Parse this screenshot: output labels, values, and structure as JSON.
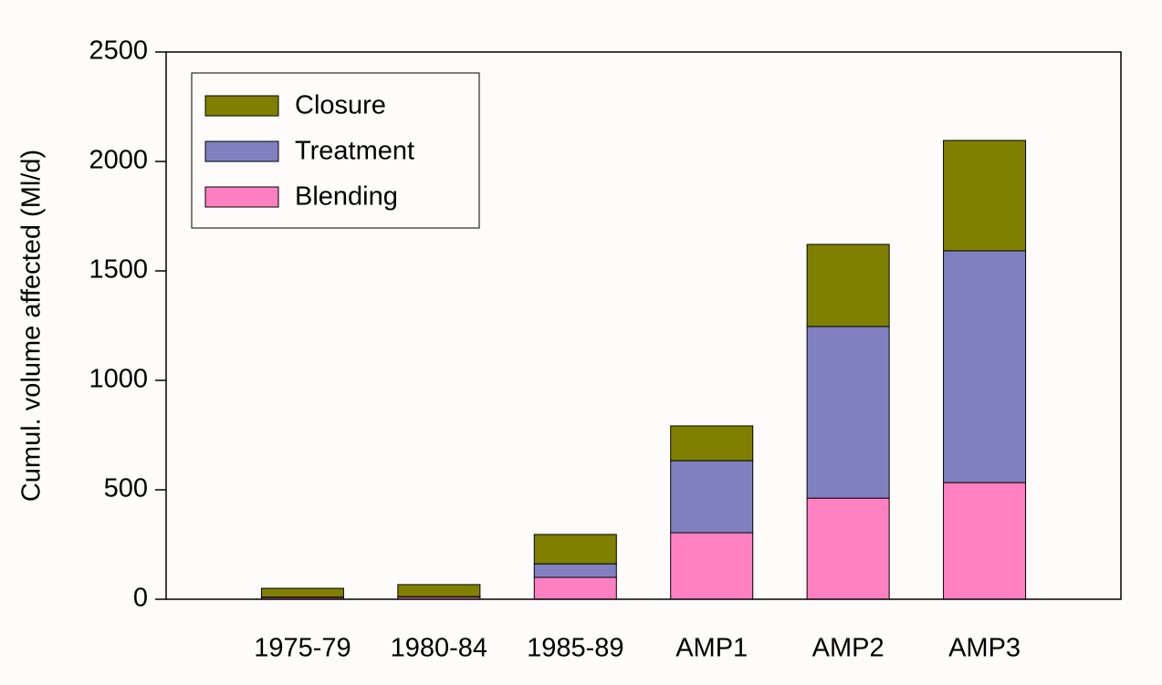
{
  "chart_data": {
    "type": "stacked_bar",
    "ylabel": "Cumul. volume affected (Ml/d)",
    "categories": [
      "1975-79",
      "1980-84",
      "1985-89",
      "AMP1",
      "AMP2",
      "AMP3"
    ],
    "series": [
      {
        "name": "Blending",
        "color": "#ff80c0",
        "values": [
          8,
          10,
          100,
          304,
          462,
          533
        ]
      },
      {
        "name": "Treatment",
        "color": "#8080c0",
        "values": [
          2,
          2,
          62,
          329,
          784,
          1059
        ]
      },
      {
        "name": "Closure",
        "color": "#808000",
        "values": [
          40,
          55,
          134,
          159,
          375,
          504
        ]
      }
    ],
    "ylim": [
      0,
      2500
    ],
    "yticks": [
      0,
      500,
      1000,
      1500,
      2000,
      2500
    ],
    "legend": "upper left"
  }
}
